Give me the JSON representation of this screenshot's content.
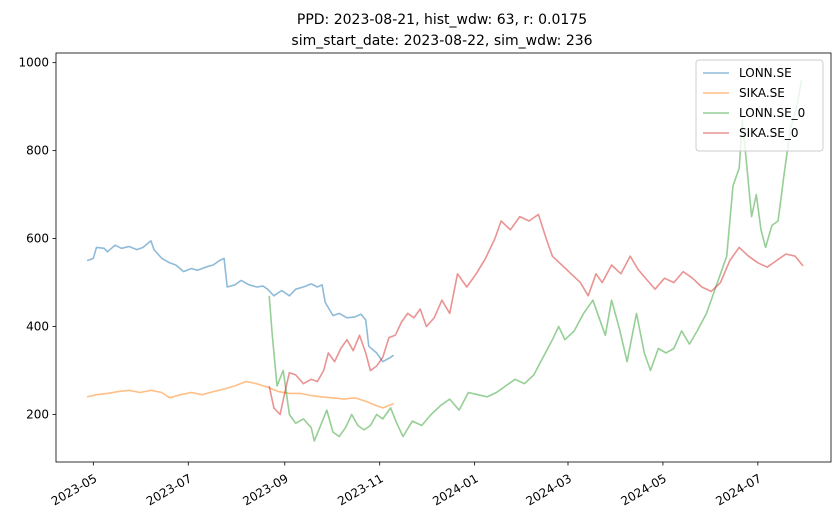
{
  "chart_data": {
    "type": "line",
    "title_lines": [
      "PPD: 2023-08-21, hist_wdw: 63, r: 0.0175",
      "sim_start_date: 2023-08-22, sim_wdw: 236"
    ],
    "xlabel": "",
    "ylabel": "",
    "x_axis": {
      "kind": "date",
      "range": [
        "2023-04-07",
        "2024-08-17"
      ]
    },
    "y_axis": {
      "range": [
        92,
        1022
      ]
    },
    "x_ticks": [
      {
        "date": "2023-05-01",
        "label": "2023-05"
      },
      {
        "date": "2023-07-01",
        "label": "2023-07"
      },
      {
        "date": "2023-09-01",
        "label": "2023-09"
      },
      {
        "date": "2023-11-01",
        "label": "2023-11"
      },
      {
        "date": "2024-01-01",
        "label": "2024-01"
      },
      {
        "date": "2024-03-01",
        "label": "2024-03"
      },
      {
        "date": "2024-05-01",
        "label": "2024-05"
      },
      {
        "date": "2024-07-01",
        "label": "2024-07"
      }
    ],
    "y_ticks": [
      200,
      400,
      600,
      800,
      1000
    ],
    "grid": false,
    "legend": {
      "position": "top-right",
      "entries": [
        "LONN.SE",
        "SIKA.SE",
        "LONN.SE_0",
        "SIKA.SE_0"
      ]
    },
    "series": [
      {
        "name": "LONN.SE",
        "color": "#1f77b4",
        "points": [
          [
            "2023-04-27",
            550
          ],
          [
            "2023-05-01",
            555
          ],
          [
            "2023-05-03",
            580
          ],
          [
            "2023-05-08",
            578
          ],
          [
            "2023-05-10",
            570
          ],
          [
            "2023-05-15",
            585
          ],
          [
            "2023-05-19",
            578
          ],
          [
            "2023-05-24",
            582
          ],
          [
            "2023-05-29",
            575
          ],
          [
            "2023-06-02",
            580
          ],
          [
            "2023-06-07",
            595
          ],
          [
            "2023-06-09",
            575
          ],
          [
            "2023-06-14",
            555
          ],
          [
            "2023-06-19",
            545
          ],
          [
            "2023-06-23",
            540
          ],
          [
            "2023-06-28",
            525
          ],
          [
            "2023-07-03",
            532
          ],
          [
            "2023-07-07",
            528
          ],
          [
            "2023-07-12",
            535
          ],
          [
            "2023-07-17",
            540
          ],
          [
            "2023-07-21",
            550
          ],
          [
            "2023-07-24",
            555
          ],
          [
            "2023-07-26",
            490
          ],
          [
            "2023-07-31",
            495
          ],
          [
            "2023-08-04",
            505
          ],
          [
            "2023-08-09",
            495
          ],
          [
            "2023-08-14",
            490
          ],
          [
            "2023-08-18",
            492
          ],
          [
            "2023-08-21",
            485
          ],
          [
            "2023-08-25",
            470
          ],
          [
            "2023-08-30",
            482
          ],
          [
            "2023-09-04",
            470
          ],
          [
            "2023-09-08",
            485
          ],
          [
            "2023-09-13",
            490
          ],
          [
            "2023-09-18",
            497
          ],
          [
            "2023-09-22",
            490
          ],
          [
            "2023-09-25",
            495
          ],
          [
            "2023-09-27",
            455
          ],
          [
            "2023-10-02",
            425
          ],
          [
            "2023-10-06",
            430
          ],
          [
            "2023-10-11",
            420
          ],
          [
            "2023-10-16",
            422
          ],
          [
            "2023-10-20",
            428
          ],
          [
            "2023-10-23",
            415
          ],
          [
            "2023-10-25",
            355
          ],
          [
            "2023-10-30",
            340
          ],
          [
            "2023-11-03",
            320
          ],
          [
            "2023-11-08",
            330
          ],
          [
            "2023-11-10",
            335
          ]
        ]
      },
      {
        "name": "SIKA.SE",
        "color": "#ff7f0e",
        "points": [
          [
            "2023-04-27",
            240
          ],
          [
            "2023-05-03",
            245
          ],
          [
            "2023-05-10",
            248
          ],
          [
            "2023-05-17",
            252
          ],
          [
            "2023-05-24",
            255
          ],
          [
            "2023-05-31",
            250
          ],
          [
            "2023-06-07",
            255
          ],
          [
            "2023-06-14",
            250
          ],
          [
            "2023-06-19",
            238
          ],
          [
            "2023-06-26",
            245
          ],
          [
            "2023-07-03",
            250
          ],
          [
            "2023-07-10",
            245
          ],
          [
            "2023-07-17",
            252
          ],
          [
            "2023-07-24",
            258
          ],
          [
            "2023-07-31",
            265
          ],
          [
            "2023-08-07",
            275
          ],
          [
            "2023-08-14",
            270
          ],
          [
            "2023-08-21",
            262
          ],
          [
            "2023-08-28",
            252
          ],
          [
            "2023-09-04",
            248
          ],
          [
            "2023-09-11",
            248
          ],
          [
            "2023-09-18",
            243
          ],
          [
            "2023-09-25",
            240
          ],
          [
            "2023-10-02",
            238
          ],
          [
            "2023-10-09",
            235
          ],
          [
            "2023-10-16",
            238
          ],
          [
            "2023-10-23",
            230
          ],
          [
            "2023-10-30",
            220
          ],
          [
            "2023-11-03",
            215
          ],
          [
            "2023-11-08",
            222
          ],
          [
            "2023-11-10",
            225
          ]
        ]
      },
      {
        "name": "LONN.SE_0",
        "color": "#2ca02c",
        "points": [
          [
            "2023-08-22",
            470
          ],
          [
            "2023-08-24",
            380
          ],
          [
            "2023-08-27",
            265
          ],
          [
            "2023-08-31",
            300
          ],
          [
            "2023-09-04",
            200
          ],
          [
            "2023-09-08",
            180
          ],
          [
            "2023-09-13",
            190
          ],
          [
            "2023-09-18",
            170
          ],
          [
            "2023-09-20",
            140
          ],
          [
            "2023-09-24",
            175
          ],
          [
            "2023-09-28",
            210
          ],
          [
            "2023-10-02",
            160
          ],
          [
            "2023-10-06",
            150
          ],
          [
            "2023-10-10",
            170
          ],
          [
            "2023-10-14",
            200
          ],
          [
            "2023-10-18",
            175
          ],
          [
            "2023-10-22",
            165
          ],
          [
            "2023-10-26",
            175
          ],
          [
            "2023-10-30",
            200
          ],
          [
            "2023-11-03",
            190
          ],
          [
            "2023-11-08",
            215
          ],
          [
            "2023-11-12",
            180
          ],
          [
            "2023-11-16",
            150
          ],
          [
            "2023-11-22",
            185
          ],
          [
            "2023-11-28",
            175
          ],
          [
            "2023-12-04",
            200
          ],
          [
            "2023-12-10",
            220
          ],
          [
            "2023-12-16",
            235
          ],
          [
            "2023-12-22",
            210
          ],
          [
            "2023-12-28",
            250
          ],
          [
            "2024-01-03",
            245
          ],
          [
            "2024-01-09",
            240
          ],
          [
            "2024-01-15",
            250
          ],
          [
            "2024-01-21",
            265
          ],
          [
            "2024-01-27",
            280
          ],
          [
            "2024-02-02",
            270
          ],
          [
            "2024-02-08",
            290
          ],
          [
            "2024-02-14",
            330
          ],
          [
            "2024-02-20",
            370
          ],
          [
            "2024-02-24",
            400
          ],
          [
            "2024-02-28",
            370
          ],
          [
            "2024-03-05",
            390
          ],
          [
            "2024-03-11",
            430
          ],
          [
            "2024-03-17",
            460
          ],
          [
            "2024-03-21",
            420
          ],
          [
            "2024-03-25",
            380
          ],
          [
            "2024-03-29",
            460
          ],
          [
            "2024-04-03",
            395
          ],
          [
            "2024-04-08",
            320
          ],
          [
            "2024-04-14",
            430
          ],
          [
            "2024-04-19",
            340
          ],
          [
            "2024-04-23",
            300
          ],
          [
            "2024-04-28",
            350
          ],
          [
            "2024-05-03",
            340
          ],
          [
            "2024-05-08",
            350
          ],
          [
            "2024-05-13",
            390
          ],
          [
            "2024-05-18",
            360
          ],
          [
            "2024-05-23",
            390
          ],
          [
            "2024-05-29",
            430
          ],
          [
            "2024-06-03",
            480
          ],
          [
            "2024-06-07",
            520
          ],
          [
            "2024-06-11",
            560
          ],
          [
            "2024-06-15",
            720
          ],
          [
            "2024-06-19",
            760
          ],
          [
            "2024-06-21",
            870
          ],
          [
            "2024-06-24",
            760
          ],
          [
            "2024-06-27",
            650
          ],
          [
            "2024-06-30",
            700
          ],
          [
            "2024-07-03",
            620
          ],
          [
            "2024-07-06",
            580
          ],
          [
            "2024-07-10",
            630
          ],
          [
            "2024-07-14",
            640
          ],
          [
            "2024-07-18",
            750
          ],
          [
            "2024-07-22",
            850
          ],
          [
            "2024-07-26",
            900
          ],
          [
            "2024-07-29",
            960
          ]
        ]
      },
      {
        "name": "SIKA.SE_0",
        "color": "#d62728",
        "points": [
          [
            "2023-08-22",
            265
          ],
          [
            "2023-08-25",
            215
          ],
          [
            "2023-08-29",
            200
          ],
          [
            "2023-09-01",
            250
          ],
          [
            "2023-09-04",
            295
          ],
          [
            "2023-09-08",
            290
          ],
          [
            "2023-09-13",
            270
          ],
          [
            "2023-09-18",
            280
          ],
          [
            "2023-09-22",
            275
          ],
          [
            "2023-09-26",
            300
          ],
          [
            "2023-09-29",
            340
          ],
          [
            "2023-10-03",
            320
          ],
          [
            "2023-10-07",
            350
          ],
          [
            "2023-10-11",
            370
          ],
          [
            "2023-10-15",
            345
          ],
          [
            "2023-10-19",
            380
          ],
          [
            "2023-10-23",
            340
          ],
          [
            "2023-10-26",
            300
          ],
          [
            "2023-10-30",
            310
          ],
          [
            "2023-11-03",
            330
          ],
          [
            "2023-11-07",
            375
          ],
          [
            "2023-11-11",
            380
          ],
          [
            "2023-11-15",
            410
          ],
          [
            "2023-11-19",
            430
          ],
          [
            "2023-11-23",
            420
          ],
          [
            "2023-11-27",
            440
          ],
          [
            "2023-12-01",
            400
          ],
          [
            "2023-12-06",
            420
          ],
          [
            "2023-12-11",
            460
          ],
          [
            "2023-12-16",
            430
          ],
          [
            "2023-12-21",
            520
          ],
          [
            "2023-12-27",
            490
          ],
          [
            "2024-01-02",
            520
          ],
          [
            "2024-01-08",
            555
          ],
          [
            "2024-01-14",
            600
          ],
          [
            "2024-01-18",
            640
          ],
          [
            "2024-01-24",
            620
          ],
          [
            "2024-01-30",
            650
          ],
          [
            "2024-02-05",
            640
          ],
          [
            "2024-02-11",
            655
          ],
          [
            "2024-02-16",
            600
          ],
          [
            "2024-02-20",
            560
          ],
          [
            "2024-02-26",
            540
          ],
          [
            "2024-03-03",
            520
          ],
          [
            "2024-03-09",
            500
          ],
          [
            "2024-03-14",
            470
          ],
          [
            "2024-03-19",
            520
          ],
          [
            "2024-03-23",
            500
          ],
          [
            "2024-03-29",
            540
          ],
          [
            "2024-04-04",
            520
          ],
          [
            "2024-04-10",
            560
          ],
          [
            "2024-04-15",
            530
          ],
          [
            "2024-04-21",
            505
          ],
          [
            "2024-04-26",
            485
          ],
          [
            "2024-05-02",
            510
          ],
          [
            "2024-05-08",
            500
          ],
          [
            "2024-05-14",
            525
          ],
          [
            "2024-05-20",
            510
          ],
          [
            "2024-05-26",
            490
          ],
          [
            "2024-06-01",
            480
          ],
          [
            "2024-06-07",
            500
          ],
          [
            "2024-06-13",
            550
          ],
          [
            "2024-06-19",
            580
          ],
          [
            "2024-06-25",
            560
          ],
          [
            "2024-07-01",
            545
          ],
          [
            "2024-07-07",
            535
          ],
          [
            "2024-07-13",
            550
          ],
          [
            "2024-07-19",
            565
          ],
          [
            "2024-07-25",
            560
          ],
          [
            "2024-07-30",
            538
          ]
        ]
      }
    ]
  }
}
